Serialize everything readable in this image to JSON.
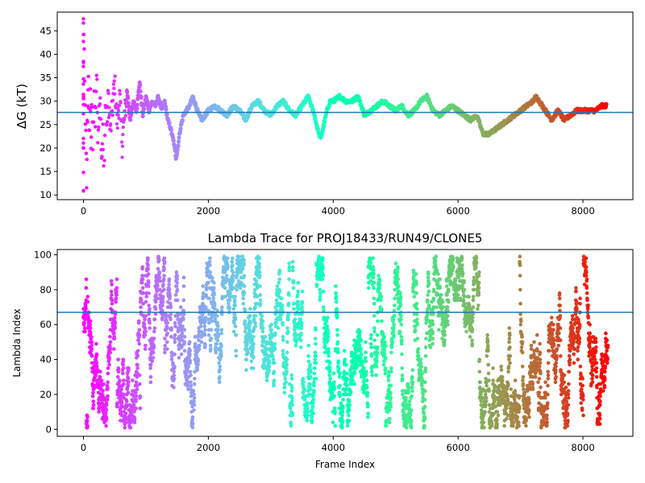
{
  "figure": {
    "title": "Lambda Trace for PROJ18433/RUN49/CLONE5"
  },
  "chart_data": [
    {
      "type": "scatter",
      "title": "",
      "xlabel": "",
      "ylabel": "ΔG (kT)",
      "xlim": [
        -420,
        8800
      ],
      "ylim": [
        9,
        49
      ],
      "xticks": [
        0,
        2000,
        4000,
        6000,
        8000
      ],
      "yticks": [
        10,
        15,
        20,
        25,
        30,
        35,
        40,
        45
      ],
      "hline": {
        "value": 27.6,
        "color": "#1f77b4"
      },
      "colormap": "rainbow (red at frame 0 → violet at final frame)",
      "frames_end": 8400,
      "trace_points": [
        [
          0,
          10
        ],
        [
          0,
          14
        ],
        [
          0,
          20
        ],
        [
          0,
          22
        ],
        [
          0,
          28
        ],
        [
          0,
          30
        ],
        [
          0,
          33
        ],
        [
          0,
          38
        ],
        [
          0,
          40
        ],
        [
          0,
          42
        ],
        [
          0,
          49
        ],
        [
          50,
          12
        ],
        [
          60,
          24
        ],
        [
          70,
          31
        ],
        [
          80,
          36
        ],
        [
          90,
          21
        ],
        [
          100,
          27
        ],
        [
          110,
          33
        ],
        [
          120,
          18
        ],
        [
          130,
          29
        ],
        [
          150,
          22
        ],
        [
          170,
          31
        ],
        [
          190,
          26
        ],
        [
          210,
          36
        ],
        [
          230,
          24
        ],
        [
          250,
          28
        ],
        [
          270,
          32
        ],
        [
          290,
          16
        ],
        [
          310,
          23
        ],
        [
          330,
          11
        ],
        [
          350,
          29
        ],
        [
          370,
          25
        ],
        [
          400,
          31
        ],
        [
          430,
          23
        ],
        [
          460,
          28
        ],
        [
          500,
          34
        ],
        [
          540,
          25
        ],
        [
          580,
          31
        ],
        [
          620,
          21
        ],
        [
          660,
          27
        ],
        [
          700,
          32
        ],
        [
          750,
          26
        ],
        [
          800,
          30
        ],
        [
          850,
          28
        ],
        [
          900,
          34
        ],
        [
          950,
          27
        ],
        [
          1000,
          31
        ],
        [
          1050,
          28
        ],
        [
          1100,
          30
        ],
        [
          1150,
          29
        ],
        [
          1200,
          31
        ],
        [
          1250,
          28
        ],
        [
          1300,
          30
        ],
        [
          1350,
          26
        ],
        [
          1400,
          24
        ],
        [
          1450,
          21
        ],
        [
          1480,
          18
        ],
        [
          1500,
          19
        ],
        [
          1550,
          24
        ],
        [
          1600,
          27
        ],
        [
          1650,
          28
        ],
        [
          1700,
          29
        ],
        [
          1750,
          31
        ],
        [
          1800,
          29
        ],
        [
          1850,
          27
        ],
        [
          1900,
          26
        ],
        [
          1950,
          27
        ],
        [
          2000,
          28
        ],
        [
          2100,
          29
        ],
        [
          2200,
          28
        ],
        [
          2300,
          27
        ],
        [
          2400,
          29
        ],
        [
          2500,
          28
        ],
        [
          2600,
          26
        ],
        [
          2700,
          29
        ],
        [
          2800,
          30
        ],
        [
          2900,
          28
        ],
        [
          3000,
          27
        ],
        [
          3100,
          29
        ],
        [
          3200,
          30
        ],
        [
          3300,
          28
        ],
        [
          3400,
          27
        ],
        [
          3500,
          29
        ],
        [
          3600,
          31
        ],
        [
          3650,
          29
        ],
        [
          3700,
          27
        ],
        [
          3750,
          24
        ],
        [
          3800,
          22
        ],
        [
          3850,
          25
        ],
        [
          3900,
          28
        ],
        [
          3950,
          30
        ],
        [
          4000,
          30
        ],
        [
          4100,
          31
        ],
        [
          4200,
          30
        ],
        [
          4300,
          30
        ],
        [
          4400,
          31
        ],
        [
          4450,
          29
        ],
        [
          4500,
          27
        ],
        [
          4600,
          28
        ],
        [
          4700,
          29
        ],
        [
          4800,
          30
        ],
        [
          4900,
          29
        ],
        [
          5000,
          28
        ],
        [
          5100,
          29
        ],
        [
          5200,
          27
        ],
        [
          5300,
          28
        ],
        [
          5400,
          30
        ],
        [
          5500,
          31
        ],
        [
          5600,
          28
        ],
        [
          5700,
          27
        ],
        [
          5800,
          28
        ],
        [
          5900,
          29
        ],
        [
          6000,
          28
        ],
        [
          6100,
          27
        ],
        [
          6200,
          26
        ],
        [
          6300,
          27
        ],
        [
          6350,
          25
        ],
        [
          6400,
          23
        ],
        [
          6500,
          23
        ],
        [
          6600,
          24
        ],
        [
          6700,
          25
        ],
        [
          6800,
          26
        ],
        [
          6900,
          27
        ],
        [
          7000,
          28
        ],
        [
          7100,
          29
        ],
        [
          7200,
          30
        ],
        [
          7250,
          31
        ],
        [
          7300,
          30
        ],
        [
          7400,
          28
        ],
        [
          7450,
          27
        ],
        [
          7500,
          26
        ],
        [
          7600,
          28
        ],
        [
          7700,
          26
        ],
        [
          7800,
          27
        ],
        [
          7900,
          28
        ],
        [
          8000,
          28
        ],
        [
          8100,
          28
        ],
        [
          8200,
          28
        ],
        [
          8300,
          29
        ],
        [
          8380,
          29
        ]
      ]
    },
    {
      "type": "scatter",
      "title": "Lambda Trace for PROJ18433/RUN49/CLONE5",
      "xlabel": "Frame Index",
      "ylabel": "Lambda Index",
      "xlim": [
        -420,
        8800
      ],
      "ylim": [
        -4,
        103
      ],
      "xticks": [
        0,
        2000,
        4000,
        6000,
        8000
      ],
      "yticks": [
        0,
        20,
        40,
        60,
        80,
        100
      ],
      "hline": {
        "value": 67,
        "color": "#1f77b4"
      },
      "colormap": "rainbow (red at frame 0 → violet at final frame)",
      "frames_end": 8400,
      "lambda_range": [
        1,
        99
      ]
    }
  ]
}
